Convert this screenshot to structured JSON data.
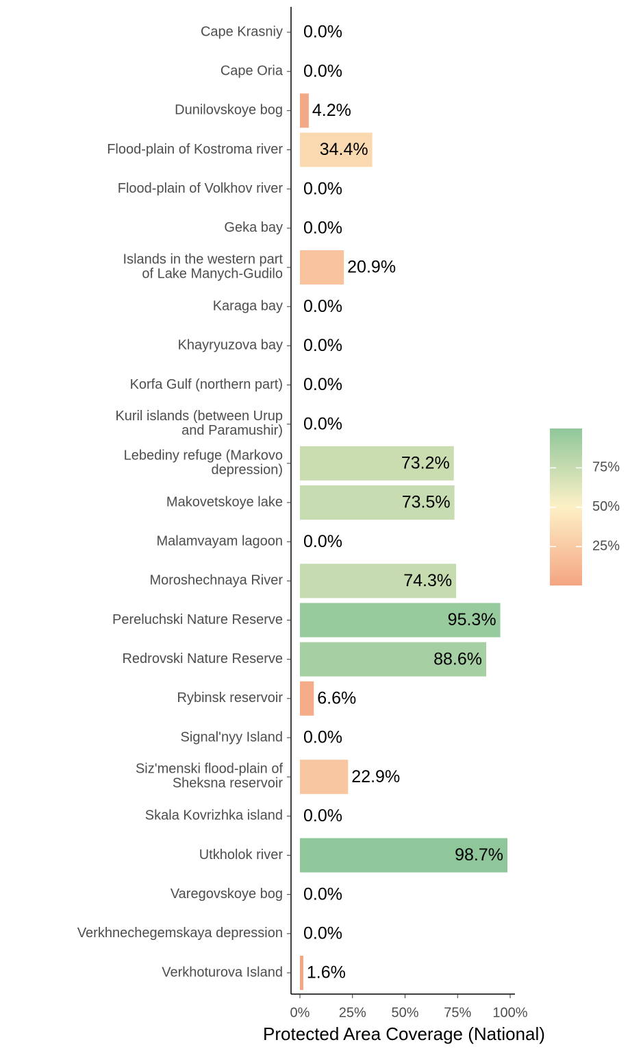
{
  "chart_data": {
    "type": "bar",
    "orientation": "horizontal",
    "x_label": "Protected Area Coverage (National)",
    "categories": [
      "Cape Krasniy",
      "Cape Oria",
      "Dunilovskoye bog",
      "Flood-plain of Kostroma river",
      "Flood-plain of Volkhov river",
      "Geka bay",
      "Islands in the western part\nof Lake Manych-Gudilo",
      "Karaga bay",
      "Khayryuzova bay",
      "Korfa Gulf (northern part)",
      "Kuril islands (between Urup\nand Paramushir)",
      "Lebediny refuge (Markovo\ndepression)",
      "Makovetskoye lake",
      "Malamvayam lagoon",
      "Moroshechnaya River",
      "Pereluchski Nature Reserve",
      "Redrovski Nature Reserve",
      "Rybinsk reservoir",
      "Signal'nyy Island",
      "Siz'menski flood-plain of\nSheksna reservoir",
      "Skala Kovrizhka island",
      "Utkholok river",
      "Varegovskoye bog",
      "Verkhnechegemskaya depression",
      "Verkhoturova Island"
    ],
    "values": [
      0,
      0,
      4.2,
      34.4,
      0,
      0,
      20.9,
      0,
      0,
      0,
      0,
      73.2,
      73.5,
      0,
      74.3,
      95.3,
      88.6,
      6.6,
      0,
      22.9,
      0,
      98.7,
      0,
      0,
      1.6
    ],
    "value_labels": [
      "0.0%",
      "0.0%",
      "4.2%",
      "34.4%",
      "0.0%",
      "0.0%",
      "20.9%",
      "0.0%",
      "0.0%",
      "0.0%",
      "0.0%",
      "73.2%",
      "73.5%",
      "0.0%",
      "74.3%",
      "95.3%",
      "88.6%",
      "6.6%",
      "0.0%",
      "22.9%",
      "0.0%",
      "98.7%",
      "0.0%",
      "0.0%",
      "1.6%"
    ],
    "xlim": [
      0,
      100
    ],
    "xticks": [
      {
        "value": 0,
        "label": "0%"
      },
      {
        "value": 25,
        "label": "25%"
      },
      {
        "value": 50,
        "label": "50%"
      },
      {
        "value": 75,
        "label": "75%"
      },
      {
        "value": 100,
        "label": "100%"
      }
    ],
    "colorbar": {
      "lim": [
        1.6,
        98.7
      ],
      "colors": [
        "#f4a582",
        "#fdf0c6",
        "#8fc79a"
      ],
      "ticks": [
        {
          "value": 25,
          "label": "25%"
        },
        {
          "value": 50,
          "label": "50%"
        },
        {
          "value": 75,
          "label": "75%"
        }
      ]
    }
  }
}
